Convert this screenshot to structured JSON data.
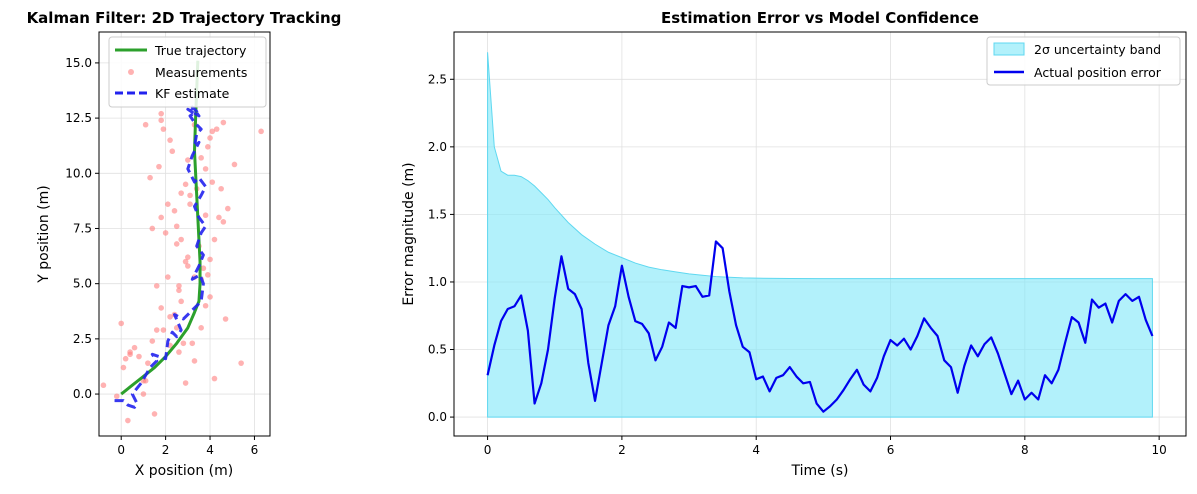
{
  "colors": {
    "true_traj": "#2ca02c",
    "measurement": "#ff7f7f",
    "kf": "#2222ee",
    "band_fill": "#7fe8f8",
    "band_edge": "#5fd8f0",
    "error_line": "#0000ee",
    "grid": "#e0e0e0"
  },
  "chart_data": [
    {
      "type": "scatter",
      "title": "Kalman Filter: 2D Trajectory Tracking",
      "xlabel": "X position (m)",
      "ylabel": "Y position (m)",
      "xlim": [
        -1,
        6.7
      ],
      "ylim": [
        -1.9,
        16.4
      ],
      "xticks": [
        0,
        2,
        4,
        6
      ],
      "yticks": [
        0.0,
        2.5,
        5.0,
        7.5,
        10.0,
        12.5,
        15.0
      ],
      "ytick_labels": [
        "0.0",
        "2.5",
        "5.0",
        "7.5",
        "10.0",
        "12.5",
        "15.0"
      ],
      "grid": true,
      "legend_position": "top-left",
      "series": [
        {
          "name": "True trajectory",
          "kind": "line",
          "x": [
            0,
            0.5,
            1.0,
            1.5,
            2.0,
            2.5,
            3.0,
            3.3,
            3.5,
            3.55,
            3.55,
            3.5,
            3.45,
            3.4,
            3.35,
            3.3,
            3.35,
            3.45
          ],
          "y": [
            0,
            0.4,
            0.8,
            1.2,
            1.7,
            2.3,
            3.0,
            3.7,
            4.2,
            5.0,
            6.0,
            7.0,
            8.0,
            9.0,
            10.0,
            11.0,
            12.5,
            15.1
          ]
        },
        {
          "name": "Measurements",
          "kind": "scatter",
          "x": [
            -0.8,
            -0.2,
            0.1,
            0.0,
            0.3,
            0.2,
            0.4,
            0.6,
            1.0,
            1.1,
            0.8,
            1.5,
            1.9,
            1.4,
            2.2,
            1.8,
            2.6,
            2.1,
            2.4,
            2.7,
            3.0,
            2.8,
            2.5,
            3.2,
            3.8,
            4.0,
            3.3,
            2.9,
            2.6,
            3.6,
            4.7,
            5.4,
            1.4,
            3.0,
            3.9,
            2.7,
            1.8,
            2.5,
            2.0,
            3.7,
            4.0,
            3.5,
            4.2,
            3.8,
            2.4,
            3.1,
            4.4,
            4.6,
            1.7,
            2.1,
            2.9,
            3.4,
            4.8,
            1.3,
            2.7,
            3.0,
            4.1,
            4.5,
            3.6,
            1.9,
            2.3,
            5.1,
            3.9,
            1.1,
            1.8,
            4.3,
            4.6,
            2.2,
            3.3,
            6.3,
            1.8,
            4.0,
            1.6,
            3.3,
            2.9,
            4.2,
            2.6,
            3.6,
            2.2,
            1.2,
            0.4,
            1.6,
            2.5,
            3.1,
            3.8,
            4.1,
            1.0
          ],
          "y": [
            0.4,
            -0.1,
            1.2,
            3.2,
            -1.2,
            1.6,
            1.8,
            2.1,
            0.6,
            0.6,
            1.7,
            -0.9,
            2.9,
            2.4,
            3.5,
            3.9,
            4.9,
            5.3,
            3.6,
            4.2,
            5.8,
            2.3,
            3.0,
            2.3,
            4.0,
            4.4,
            5.3,
            6.0,
            4.7,
            5.2,
            3.4,
            1.4,
            7.5,
            6.2,
            5.4,
            7.0,
            8.0,
            7.6,
            7.3,
            5.7,
            6.1,
            6.7,
            7.0,
            8.1,
            8.3,
            9.0,
            8.0,
            7.8,
            10.3,
            8.6,
            9.5,
            9.3,
            8.4,
            9.8,
            9.1,
            10.6,
            9.6,
            9.3,
            10.7,
            12.0,
            11.0,
            10.4,
            11.2,
            12.2,
            12.4,
            12.0,
            12.3,
            11.5,
            12.2,
            11.9,
            12.7,
            11.6,
            2.9,
            1.5,
            0.5,
            0.7,
            1.9,
            3.0,
            2.2,
            1.4,
            1.9,
            4.9,
            6.8,
            8.6,
            10.2,
            11.9,
            0.0
          ],
          "marker_size_px": 2.8
        },
        {
          "name": "KF estimate",
          "kind": "line",
          "dashed": true,
          "x": [
            -0.3,
            0.1,
            0.3,
            0.6,
            0.7,
            0.5,
            0.9,
            1.3,
            1.6,
            1.4,
            2.0,
            2.1,
            2.3,
            2.5,
            2.7,
            2.4,
            2.8,
            3.2,
            3.6,
            3.7,
            3.55,
            3.2,
            3.5,
            3.7,
            3.4,
            3.6,
            3.8,
            3.5,
            3.3,
            3.6,
            3.8,
            3.5,
            3.3,
            3.0,
            3.2,
            3.5,
            3.3,
            3.4,
            3.6,
            3.3,
            3.1,
            3.4,
            3.2,
            3.5,
            3.0,
            3.3,
            3.1
          ],
          "y": [
            -0.3,
            -0.3,
            -0.5,
            -0.6,
            -0.4,
            0.0,
            0.5,
            1.2,
            1.5,
            1.8,
            1.6,
            2.4,
            2.8,
            2.6,
            2.9,
            3.6,
            3.4,
            3.8,
            4.2,
            5.0,
            5.4,
            5.2,
            5.8,
            6.3,
            6.7,
            7.3,
            7.6,
            8.0,
            8.5,
            9.0,
            9.4,
            9.8,
            9.6,
            10.2,
            10.8,
            11.4,
            11.2,
            11.8,
            12.0,
            12.3,
            12.6,
            12.8,
            13.0,
            12.6,
            12.9,
            12.7,
            12.9
          ]
        }
      ]
    },
    {
      "type": "area",
      "title": "Estimation Error vs Model Confidence",
      "xlabel": "Time (s)",
      "ylabel": "Error magnitude (m)",
      "xlim": [
        -0.5,
        10.4
      ],
      "ylim": [
        -0.14,
        2.85
      ],
      "xticks": [
        0,
        2,
        4,
        6,
        8,
        10
      ],
      "yticks": [
        0.0,
        0.5,
        1.0,
        1.5,
        2.0,
        2.5
      ],
      "ytick_labels": [
        "0.0",
        "0.5",
        "1.0",
        "1.5",
        "2.0",
        "2.5"
      ],
      "grid": true,
      "legend_position": "top-right",
      "band": {
        "name": "2σ uncertainty band",
        "x": [
          0.0,
          0.1,
          0.2,
          0.3,
          0.4,
          0.5,
          0.6,
          0.7,
          0.8,
          0.9,
          1.0,
          1.2,
          1.4,
          1.6,
          1.8,
          2.0,
          2.2,
          2.4,
          2.6,
          2.8,
          3.0,
          3.2,
          3.4,
          3.6,
          3.8,
          4.0,
          4.5,
          5.0,
          6.0,
          7.0,
          8.0,
          9.0,
          9.9
        ],
        "lower": 0.0,
        "upper": [
          2.7,
          2.0,
          1.82,
          1.79,
          1.79,
          1.78,
          1.75,
          1.71,
          1.66,
          1.61,
          1.55,
          1.44,
          1.35,
          1.28,
          1.22,
          1.18,
          1.14,
          1.11,
          1.09,
          1.075,
          1.06,
          1.05,
          1.04,
          1.035,
          1.03,
          1.028,
          1.026,
          1.025,
          1.025,
          1.025,
          1.025,
          1.025,
          1.025
        ]
      },
      "series": [
        {
          "name": "Actual position error",
          "x": [
            0.0,
            0.1,
            0.2,
            0.3,
            0.4,
            0.5,
            0.6,
            0.7,
            0.8,
            0.9,
            1.0,
            1.1,
            1.2,
            1.3,
            1.4,
            1.5,
            1.6,
            1.7,
            1.8,
            1.9,
            2.0,
            2.1,
            2.2,
            2.3,
            2.4,
            2.5,
            2.6,
            2.7,
            2.8,
            2.9,
            3.0,
            3.1,
            3.2,
            3.3,
            3.4,
            3.5,
            3.6,
            3.7,
            3.8,
            3.9,
            4.0,
            4.1,
            4.2,
            4.3,
            4.4,
            4.5,
            4.6,
            4.7,
            4.8,
            4.9,
            5.0,
            5.1,
            5.2,
            5.3,
            5.4,
            5.5,
            5.6,
            5.7,
            5.8,
            5.9,
            6.0,
            6.1,
            6.2,
            6.3,
            6.4,
            6.5,
            6.6,
            6.7,
            6.8,
            6.9,
            7.0,
            7.1,
            7.2,
            7.3,
            7.4,
            7.5,
            7.6,
            7.7,
            7.8,
            7.9,
            8.0,
            8.1,
            8.2,
            8.3,
            8.4,
            8.5,
            8.6,
            8.7,
            8.8,
            8.9,
            9.0,
            9.1,
            9.2,
            9.3,
            9.4,
            9.5,
            9.6,
            9.7,
            9.8,
            9.9
          ],
          "values": [
            0.31,
            0.53,
            0.71,
            0.8,
            0.82,
            0.9,
            0.64,
            0.1,
            0.25,
            0.5,
            0.88,
            1.19,
            0.95,
            0.91,
            0.8,
            0.4,
            0.12,
            0.4,
            0.68,
            0.82,
            1.12,
            0.89,
            0.71,
            0.69,
            0.62,
            0.42,
            0.52,
            0.7,
            0.66,
            0.97,
            0.96,
            0.97,
            0.89,
            0.9,
            1.3,
            1.25,
            0.93,
            0.68,
            0.52,
            0.48,
            0.28,
            0.3,
            0.19,
            0.29,
            0.31,
            0.37,
            0.3,
            0.25,
            0.26,
            0.1,
            0.04,
            0.08,
            0.13,
            0.2,
            0.28,
            0.35,
            0.24,
            0.19,
            0.29,
            0.45,
            0.57,
            0.53,
            0.58,
            0.5,
            0.6,
            0.73,
            0.66,
            0.6,
            0.42,
            0.37,
            0.18,
            0.38,
            0.53,
            0.45,
            0.54,
            0.59,
            0.47,
            0.32,
            0.17,
            0.27,
            0.13,
            0.18,
            0.13,
            0.31,
            0.25,
            0.35,
            0.55,
            0.74,
            0.7,
            0.55,
            0.87,
            0.81,
            0.84,
            0.7,
            0.86,
            0.91,
            0.86,
            0.89,
            0.72,
            0.6
          ]
        }
      ]
    }
  ]
}
